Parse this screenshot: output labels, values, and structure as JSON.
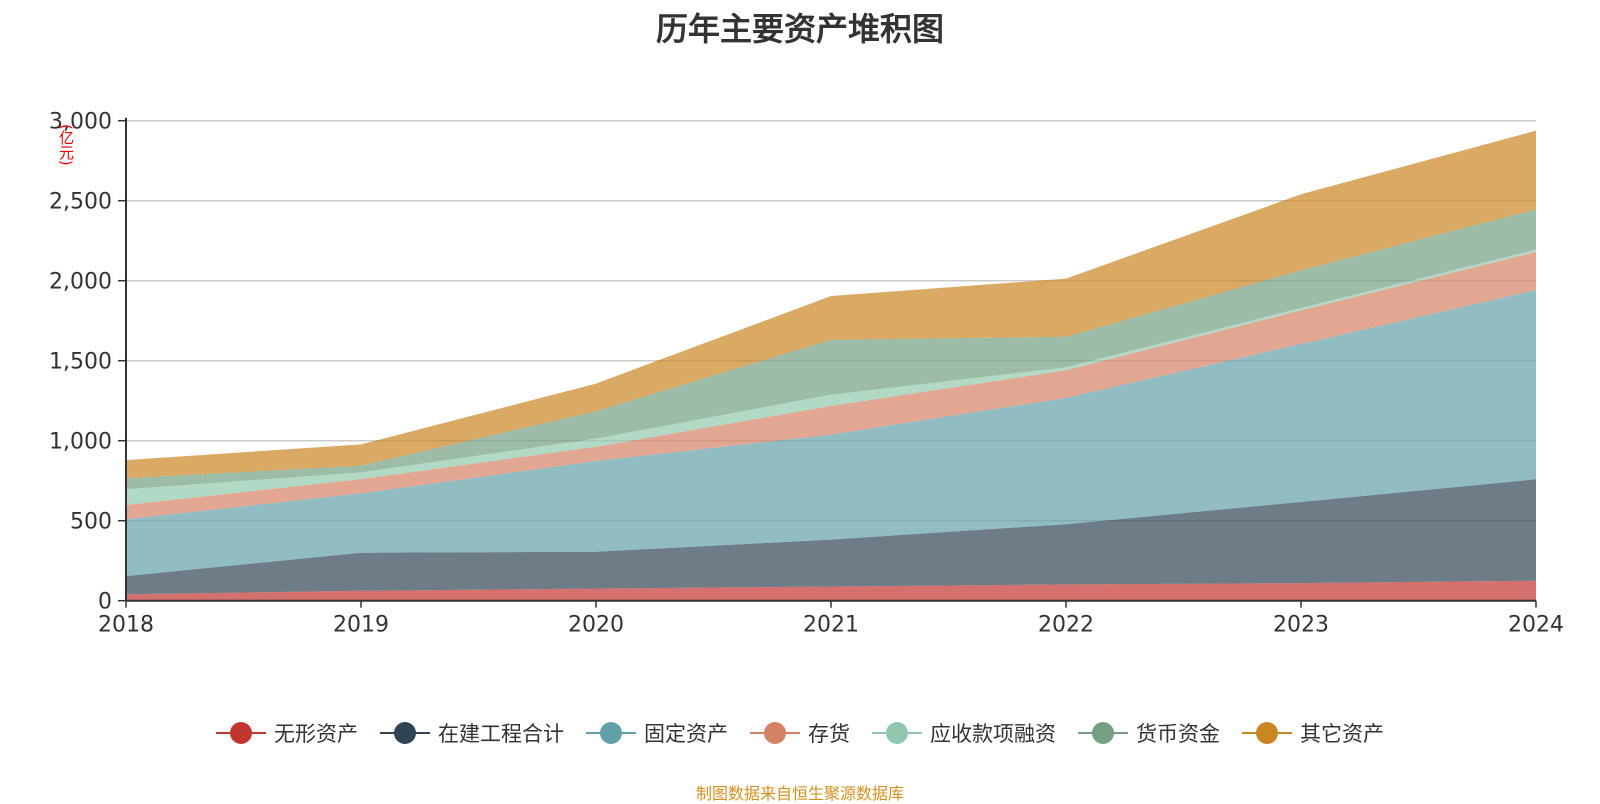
{
  "chart_data": {
    "type": "area",
    "stacked": true,
    "title": "历年主要资产堆积图",
    "ylabel": "(亿元)",
    "xlabel": "",
    "categories": [
      "2018",
      "2019",
      "2020",
      "2021",
      "2022",
      "2023",
      "2024"
    ],
    "ylim": [
      0,
      3000
    ],
    "yticks": [
      "0",
      "500",
      "1,000",
      "1,500",
      "2,000",
      "2,500",
      "3,000"
    ],
    "grid": true,
    "legend_position": "bottom",
    "series": [
      {
        "name": "无形资产",
        "color": "#c23531",
        "values": [
          40,
          62,
          76,
          89,
          102,
          110,
          125
        ]
      },
      {
        "name": "在建工程合计",
        "color": "#2f4554",
        "values": [
          114,
          238,
          230,
          293,
          376,
          507,
          634
        ]
      },
      {
        "name": "固定资产",
        "color": "#61a0a8",
        "values": [
          355,
          371,
          567,
          656,
          790,
          987,
          1183
        ]
      },
      {
        "name": "存货",
        "color": "#d48265",
        "values": [
          89,
          89,
          89,
          179,
          172,
          211,
          238
        ]
      },
      {
        "name": "应收款项融资",
        "color": "#91c7ae",
        "values": [
          98,
          42,
          51,
          70,
          19,
          14,
          15
        ]
      },
      {
        "name": "货币资金",
        "color": "#749f83",
        "values": [
          69,
          42,
          172,
          344,
          191,
          236,
          251
        ]
      },
      {
        "name": "其它资产",
        "color": "#ca8622",
        "values": [
          114,
          133,
          172,
          273,
          363,
          475,
          492
        ]
      }
    ]
  },
  "source": "制图数据来自恒生聚源数据库"
}
